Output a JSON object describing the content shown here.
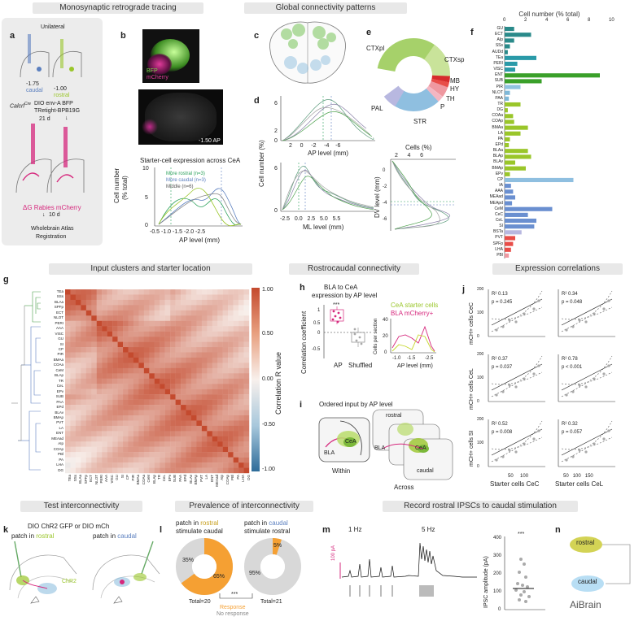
{
  "banners": {
    "mono": "Monosynaptic retrograde tracing",
    "global": "Global connectivity patterns",
    "cellnum": "Cell number (% total)",
    "clusters": "Input clusters and starter location",
    "rostrocaudal": "Rostrocaudal connectivity",
    "exprcorr": "Expression correlations",
    "interconn": "Test interconnectivity",
    "prevalence": "Prevalence of interconnectivity",
    "ipsc": "Record rostral IPSCs to caudal stimulation"
  },
  "letters": {
    "a": "a",
    "b": "b",
    "c": "c",
    "d": "d",
    "e": "e",
    "f": "f",
    "g": "g",
    "h": "h",
    "i": "i",
    "j": "j",
    "k": "k",
    "l": "l",
    "m": "m",
    "n": "n"
  },
  "panel_a": {
    "unilateral": "Unilateral",
    "ap1": "-1.75",
    "caudal": "caudal",
    "ap2": "-1.00",
    "rostral": "rostral",
    "mouse_line": "Calcrl",
    "mouse_sup": "Cre",
    "virus1": "DIO env-A BFP",
    "virus2": "TRetight-BPB19G",
    "wait1": "21 d",
    "rabies": "ΔG Rabies mCherry",
    "wait2": "10 d",
    "registration1": "Wholebrain Atlas",
    "registration2": "Registration"
  },
  "panel_b": {
    "bfp": "BFP",
    "mcherry": "mCherry",
    "ap_label": "-1.50 AP",
    "chart_title": "Starter-cell expression across CeA",
    "legend_rostral": "More rostral (n=3)",
    "legend_caudal": "More caudal (n=3)",
    "legend_middle": "Middle (n=6)",
    "xlabel": "AP level (mm)",
    "ylabel1": "Cell number",
    "ylabel2": "(% total)"
  },
  "panel_d": {
    "xlabel_ap": "AP level (mm)",
    "xlabel_ml": "ML level (mm)",
    "ylabel": "Cell number (%)",
    "cells_label": "Cells (%)",
    "dv_label": "DV level (mm)"
  },
  "panel_e": {
    "ctxpl": "CTXpl",
    "ctxsp": "CTXsp",
    "mb": "MB",
    "hy": "HY",
    "th": "TH",
    "p": "P",
    "str": "STR",
    "pal": "PAL"
  },
  "panel_f": {
    "regions": [
      "GU",
      "ECT",
      "AIp",
      "SSs",
      "AUDd",
      "TEa",
      "PERI",
      "VISC",
      "ENT",
      "SUB",
      "PIR",
      "NLOT",
      "PAA",
      "TR",
      "DG",
      "COAa",
      "COAp",
      "BMAa",
      "LA",
      "PA",
      "EPd",
      "BLAa",
      "BLAp",
      "BLAv",
      "BMAp",
      "EPv",
      "CP",
      "IA",
      "AAA",
      "MEAad",
      "MEApd",
      "CeM",
      "CeC",
      "CeL",
      "SI",
      "BSTa",
      "PVT",
      "SPFp",
      "LHA",
      "PBl"
    ],
    "values": [
      0.9,
      2.5,
      0.9,
      0.5,
      0.3,
      3.0,
      1.2,
      1.0,
      9.0,
      3.5,
      1.5,
      0.5,
      0.4,
      1.5,
      0.3,
      0.8,
      0.9,
      2.2,
      1.5,
      0.5,
      0.4,
      2.2,
      2.5,
      1.0,
      2.0,
      0.5,
      6.5,
      0.6,
      0.8,
      1.0,
      0.7,
      4.5,
      2.2,
      3.0,
      2.8,
      1.6,
      1.0,
      0.8,
      0.6,
      0.4
    ],
    "ticks": [
      "0",
      "2",
      "4",
      "6",
      "8",
      "10"
    ]
  },
  "panel_g": {
    "rows": [
      "TEa",
      "SSs",
      "BLAa",
      "SPFp",
      "ECT",
      "NLOT",
      "PERI",
      "AAA",
      "VISC",
      "GU",
      "SI",
      "CP",
      "PIR",
      "BMAa",
      "COAa",
      "CeM",
      "BLAp",
      "TR",
      "CeL",
      "EPv",
      "SUB",
      "PAA",
      "EPd",
      "BLAv",
      "BMAp",
      "PVT",
      "LA",
      "ENT",
      "MEAad",
      "AIp",
      "COAp",
      "PBl",
      "PA",
      "LHA",
      "DG"
    ],
    "colorbar_label": "Correlation R value",
    "colorbar_ticks": [
      "1.00",
      "0.50",
      "0.00",
      "-0.50",
      "-1.00"
    ]
  },
  "panel_h": {
    "title1": "BLA to CeA",
    "title2": "expression by AP level",
    "ylabel": "Correlation coefficient",
    "ticks": [
      "1",
      "0.5",
      "0",
      "-0.5"
    ],
    "cat_ap": "AP",
    "cat_shuffled": "Shuffled",
    "sig": "***",
    "legend_cea": "CeA starter cells",
    "legend_bla": "BLA mCherry+",
    "right_ylabel": "Cells per section",
    "right_ticks": [
      "40",
      "20",
      "0"
    ],
    "right_xticks": [
      "-1.0",
      "-1.5",
      "-2.5"
    ],
    "xlabel": "AP level (mm)"
  },
  "panel_i": {
    "title": "Ordered input by AP level",
    "cea": "CeA",
    "bla": "BLA",
    "within": "Within",
    "across": "Across",
    "rostral": "rostral",
    "caudal": "caudal"
  },
  "panel_j": {
    "stats": [
      {
        "r2": "R² 0.13",
        "p": "p = 0.245"
      },
      {
        "r2": "R² 0.34",
        "p": "p = 0.048"
      },
      {
        "r2": "R² 0.37",
        "p": "p = 0.037"
      },
      {
        "r2": "R² 0.78",
        "p": "p < 0.001"
      },
      {
        "r2": "R² 0.52",
        "p": "p = 0.008"
      },
      {
        "r2": "R² 0.32",
        "p": "p = 0.057"
      }
    ],
    "ylabels": [
      "mCH+ cells CeC",
      "mCH+ cells CeL",
      "mCH+ cells SI"
    ],
    "xlabels": [
      "Starter cells CeC",
      "Starter cells CeL"
    ],
    "yticks": [
      "200",
      "100",
      "0"
    ],
    "xticks_left": [
      "50",
      "100"
    ],
    "xticks_right": [
      "50",
      "100",
      "150"
    ]
  },
  "panel_k": {
    "title": "DIO ChR2 GFP or DIO mCh",
    "patch_rostral_pre": "patch in ",
    "patch_rostral": "rostral",
    "patch_caudal_pre": "patch in ",
    "patch_caudal": "caudal",
    "chr2": "ChR2"
  },
  "panel_l": {
    "left_title_pre": "patch in ",
    "left_title_word": "rostral",
    "left_title2": "stimulate caudal",
    "right_title_pre": "patch in ",
    "right_title_word": "caudal",
    "right_title2": "stimulate rostral",
    "left_pct_no": "35%",
    "left_pct_yes": "65%",
    "left_total": "Total=20",
    "right_pct_no": "95%",
    "right_pct_yes": "5%",
    "right_total": "Total=21",
    "response": "Response",
    "no_response": "No response",
    "sig": "***"
  },
  "panel_m": {
    "hz1": "1 Hz",
    "hz5": "5 Hz",
    "scale": "100 pA",
    "ylabel": "IPSC amplitude (pA)",
    "ticks": [
      "400",
      "300",
      "200",
      "100",
      "0"
    ],
    "sig": "***"
  },
  "panel_n": {
    "rostral": "rostral",
    "caudal": "caudal"
  },
  "watermark": "AiBrain",
  "colors": {
    "rostral": "#9ac62a",
    "caudal": "#5b7fbf",
    "mcherry": "#d6287d",
    "orange": "#f5a033",
    "banner": "#e8e8e8"
  }
}
